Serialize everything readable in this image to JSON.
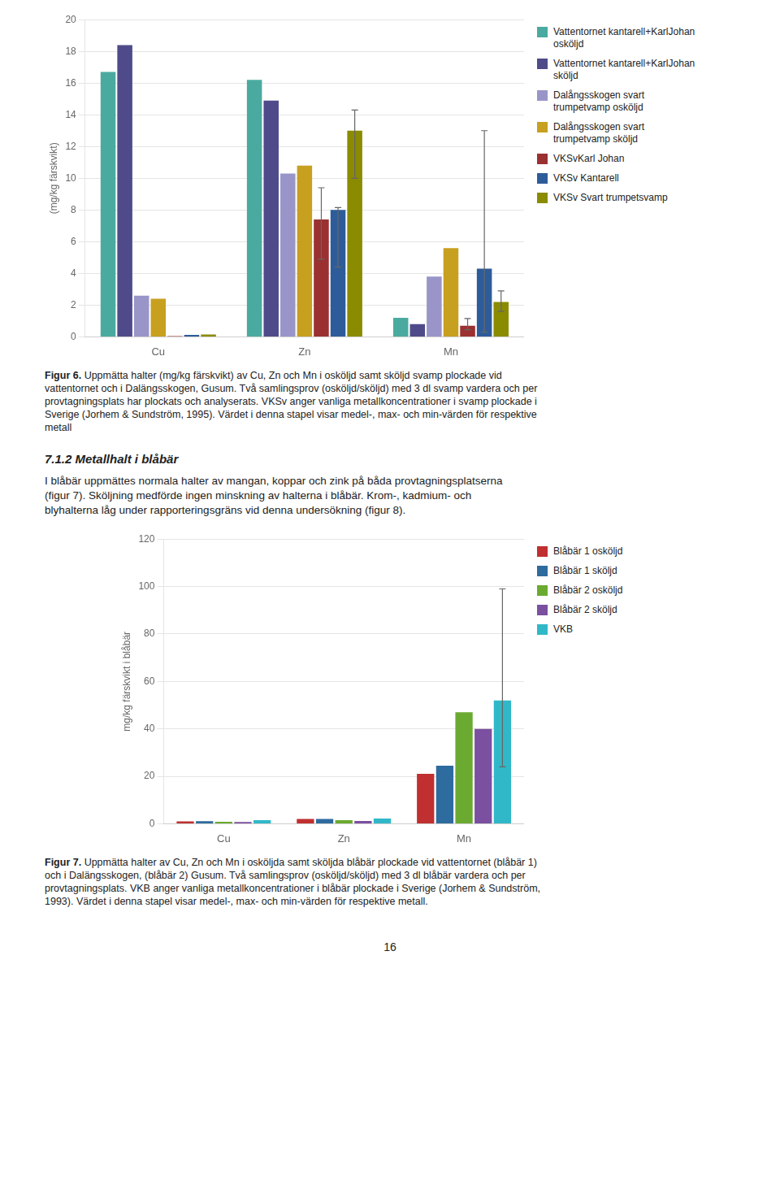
{
  "chart_data": [
    {
      "type": "bar",
      "ylabel": "(mg/kg färskvikt)",
      "categories": [
        "Cu",
        "Zn",
        "Mn"
      ],
      "series": [
        {
          "name": "Vattentornet kantarell+KarlJohan\nosköljd",
          "color": "#4BAAA0",
          "values": [
            16.7,
            16.2,
            1.2
          ],
          "err_lo": [
            null,
            null,
            null
          ],
          "err_hi": [
            null,
            null,
            null
          ]
        },
        {
          "name": "Vattentornet kantarell+KarlJohan\nsköljd",
          "color": "#4F4B8A",
          "values": [
            18.4,
            14.9,
            0.8
          ],
          "err_lo": [
            null,
            null,
            null
          ],
          "err_hi": [
            null,
            null,
            null
          ]
        },
        {
          "name": "Dalångsskogen svart\ntrumpetvamp osköljd",
          "color": "#9A95C8",
          "values": [
            2.6,
            10.3,
            3.8
          ],
          "err_lo": [
            null,
            null,
            null
          ],
          "err_hi": [
            null,
            null,
            null
          ]
        },
        {
          "name": "Dalångsskogen svart\ntrumpetvamp sköljd",
          "color": "#C8A020",
          "values": [
            2.4,
            10.8,
            5.6
          ],
          "err_lo": [
            null,
            null,
            null
          ],
          "err_hi": [
            null,
            null,
            null
          ]
        },
        {
          "name": "VKSvKarl Johan",
          "color": "#9B3030",
          "values": [
            0.05,
            7.4,
            0.7
          ],
          "err_lo": [
            null,
            2.5,
            0.25
          ],
          "err_hi": [
            null,
            2.0,
            0.45
          ]
        },
        {
          "name": "VKSv Kantarell",
          "color": "#2E5C9A",
          "values": [
            0.12,
            8.0,
            4.3
          ],
          "err_lo": [
            null,
            3.6,
            4.0
          ],
          "err_hi": [
            null,
            0.15,
            8.7
          ]
        },
        {
          "name": "VKSv Svart trumpetsvamp",
          "color": "#8B8B00",
          "values": [
            0.15,
            13.0,
            2.2
          ],
          "err_lo": [
            null,
            3.0,
            0.6
          ],
          "err_hi": [
            null,
            1.3,
            0.7
          ]
        }
      ],
      "ylim": [
        0,
        20
      ],
      "yticks": [
        0,
        2,
        4,
        6,
        8,
        10,
        12,
        14,
        16,
        18,
        20
      ],
      "grid": true,
      "legend": "right",
      "annotations": [
        "Figur 6.",
        " Uppmätta halter (mg/kg färskvikt) av Cu, Zn och Mn i osköljd samt sköljd svamp plockade vid\nvattentornet och i Dalängsskogen, Gusum. Två samlingsprov (osköljd/sköljd) med 3 dl svamp vardera och per\nprovtagningsplats har plockats och analyserats. VKSv anger vanliga metallkoncentrationer i svamp plockade i\nSverige (Jorhem & Sundström, 1995). Värdet i denna stapel visar medel-, max- och min-värden för respektive\nmetall"
      ]
    },
    {
      "type": "bar",
      "ylabel": "mg/kg färskvikt i blåbär",
      "categories": [
        "Cu",
        "Zn",
        "Mn"
      ],
      "series": [
        {
          "name": "Blåbär 1 osköljd",
          "color": "#C03030",
          "values": [
            1.0,
            2.0,
            21
          ],
          "err_lo": [
            null,
            null,
            null
          ],
          "err_hi": [
            null,
            null,
            null
          ]
        },
        {
          "name": "Blåbär 1 sköljd",
          "color": "#2E6B9E",
          "values": [
            1.1,
            2.0,
            24.5
          ],
          "err_lo": [
            null,
            null,
            null
          ],
          "err_hi": [
            null,
            null,
            null
          ]
        },
        {
          "name": "Blåbär 2 osköljd",
          "color": "#6BAA30",
          "values": [
            0.8,
            1.5,
            47
          ],
          "err_lo": [
            null,
            null,
            null
          ],
          "err_hi": [
            null,
            null,
            null
          ]
        },
        {
          "name": "Blåbär 2 sköljd",
          "color": "#7B50A0",
          "values": [
            0.7,
            1.2,
            40
          ],
          "err_lo": [
            null,
            null,
            null
          ],
          "err_hi": [
            null,
            null,
            null
          ]
        },
        {
          "name": "VKB",
          "color": "#30B8C8",
          "values": [
            1.5,
            2.2,
            52
          ],
          "err_lo": [
            null,
            null,
            28
          ],
          "err_hi": [
            null,
            null,
            47
          ]
        }
      ],
      "ylim": [
        0,
        120
      ],
      "yticks": [
        0,
        20,
        40,
        60,
        80,
        100,
        120
      ],
      "grid": true,
      "legend": "right",
      "annotations": [
        "Figur 7.",
        " Uppmätta halter av Cu, Zn och Mn i osköljda samt sköljda blåbär plockade vid vattentornet (blåbär 1)\noch i Dalängsskogen, (blåbär 2) Gusum. Två samlingsprov (osköljd/sköljd) med 3 dl blåbär vardera och per\nprovtagningsplats. VKB anger vanliga metallkoncentrationer i blåbär plockade i Sverige (Jorhem & Sundström,\n1993). Värdet i denna stapel visar medel-, max- och min-värden för respektive metall."
      ]
    }
  ],
  "annotations": [
    "7.1.2 Metallhalt i blåbär",
    "I blåbär uppmättes normala halter av mangan, koppar och zink på båda provtagningsplatserna\n(figur 7). Sköljning medförde ingen minskning av halterna i blåbär. Krom-, kadmium- och\nblyhalterna låg under rapporteringsgräns vid denna undersökning (figur 8).",
    "16"
  ]
}
